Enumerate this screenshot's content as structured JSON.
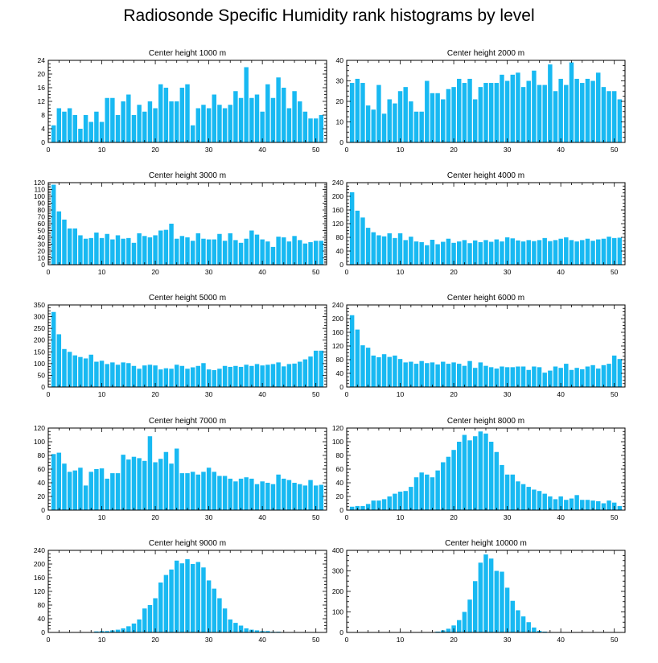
{
  "title": "Radiosonde Specific Humidity rank histograms by level",
  "colors": {
    "bar": "#18b9f2",
    "axis": "#000000",
    "background": "#ffffff"
  },
  "chart_data": [
    {
      "type": "bar",
      "title": "Center height 1000 m",
      "xlabel": "",
      "ylabel": "",
      "xlim": [
        0,
        52
      ],
      "ylim": [
        0,
        24
      ],
      "xticks": [
        0,
        10,
        20,
        30,
        40,
        50
      ],
      "yticks": [
        0,
        4,
        8,
        12,
        16,
        20,
        24
      ],
      "x": [
        1,
        2,
        3,
        4,
        5,
        6,
        7,
        8,
        9,
        10,
        11,
        12,
        13,
        14,
        15,
        16,
        17,
        18,
        19,
        20,
        21,
        22,
        23,
        24,
        25,
        26,
        27,
        28,
        29,
        30,
        31,
        32,
        33,
        34,
        35,
        36,
        37,
        38,
        39,
        40,
        41,
        42,
        43,
        44,
        45,
        46,
        47,
        48,
        49,
        50,
        51
      ],
      "values": [
        5,
        10,
        9,
        10,
        8,
        4,
        8,
        6,
        9,
        6,
        13,
        13,
        8,
        12,
        14,
        8,
        11,
        9,
        12,
        10,
        17,
        16,
        12,
        12,
        16,
        17,
        5,
        10,
        11,
        10,
        14,
        11,
        10,
        11,
        15,
        13,
        22,
        13,
        14,
        9,
        17,
        13,
        19,
        16,
        10,
        15,
        12,
        9,
        7,
        7,
        8
      ]
    },
    {
      "type": "bar",
      "title": "Center height 2000 m",
      "xlabel": "",
      "ylabel": "",
      "xlim": [
        0,
        52
      ],
      "ylim": [
        0,
        40
      ],
      "xticks": [
        0,
        10,
        20,
        30,
        40,
        50
      ],
      "yticks": [
        0,
        10,
        20,
        30,
        40
      ],
      "x": [
        1,
        2,
        3,
        4,
        5,
        6,
        7,
        8,
        9,
        10,
        11,
        12,
        13,
        14,
        15,
        16,
        17,
        18,
        19,
        20,
        21,
        22,
        23,
        24,
        25,
        26,
        27,
        28,
        29,
        30,
        31,
        32,
        33,
        34,
        35,
        36,
        37,
        38,
        39,
        40,
        41,
        42,
        43,
        44,
        45,
        46,
        47,
        48,
        49,
        50,
        51
      ],
      "values": [
        29,
        31,
        29,
        18,
        16,
        28,
        14,
        21,
        19,
        25,
        27,
        20,
        15,
        15,
        30,
        24,
        24,
        21,
        26,
        27,
        31,
        29,
        31,
        21,
        27,
        29,
        29,
        29,
        33,
        30,
        33,
        34,
        27,
        30,
        35,
        28,
        28,
        38,
        25,
        31,
        28,
        39,
        31,
        29,
        31,
        30,
        34,
        27,
        25,
        25,
        21
      ]
    },
    {
      "type": "bar",
      "title": "Center height 3000 m",
      "xlabel": "",
      "ylabel": "",
      "xlim": [
        0,
        52
      ],
      "ylim": [
        0,
        120
      ],
      "xticks": [
        0,
        10,
        20,
        30,
        40,
        50
      ],
      "yticks": [
        0,
        10,
        20,
        30,
        40,
        50,
        60,
        70,
        80,
        90,
        100,
        110,
        120
      ],
      "x": [
        1,
        2,
        3,
        4,
        5,
        6,
        7,
        8,
        9,
        10,
        11,
        12,
        13,
        14,
        15,
        16,
        17,
        18,
        19,
        20,
        21,
        22,
        23,
        24,
        25,
        26,
        27,
        28,
        29,
        30,
        31,
        32,
        33,
        34,
        35,
        36,
        37,
        38,
        39,
        40,
        41,
        42,
        43,
        44,
        45,
        46,
        47,
        48,
        49,
        50,
        51
      ],
      "values": [
        117,
        78,
        66,
        53,
        53,
        43,
        38,
        39,
        47,
        39,
        45,
        37,
        43,
        38,
        39,
        32,
        46,
        42,
        40,
        43,
        50,
        51,
        60,
        38,
        42,
        40,
        35,
        46,
        38,
        37,
        37,
        45,
        35,
        46,
        36,
        32,
        38,
        50,
        44,
        37,
        34,
        26,
        41,
        40,
        34,
        42,
        36,
        31,
        33,
        35,
        35
      ]
    },
    {
      "type": "bar",
      "title": "Center height 4000 m",
      "xlabel": "",
      "ylabel": "",
      "xlim": [
        0,
        52
      ],
      "ylim": [
        0,
        240
      ],
      "xticks": [
        0,
        10,
        20,
        30,
        40,
        50
      ],
      "yticks": [
        0,
        40,
        80,
        120,
        160,
        200,
        240
      ],
      "x": [
        1,
        2,
        3,
        4,
        5,
        6,
        7,
        8,
        9,
        10,
        11,
        12,
        13,
        14,
        15,
        16,
        17,
        18,
        19,
        20,
        21,
        22,
        23,
        24,
        25,
        26,
        27,
        28,
        29,
        30,
        31,
        32,
        33,
        34,
        35,
        36,
        37,
        38,
        39,
        40,
        41,
        42,
        43,
        44,
        45,
        46,
        47,
        48,
        49,
        50,
        51
      ],
      "values": [
        212,
        158,
        138,
        108,
        95,
        86,
        83,
        92,
        78,
        92,
        72,
        82,
        68,
        66,
        57,
        73,
        60,
        67,
        76,
        64,
        68,
        72,
        63,
        71,
        66,
        72,
        67,
        74,
        68,
        80,
        77,
        71,
        68,
        72,
        69,
        72,
        78,
        69,
        72,
        76,
        80,
        72,
        68,
        72,
        76,
        70,
        74,
        76,
        82,
        78,
        79
      ]
    },
    {
      "type": "bar",
      "title": "Center height 5000 m",
      "xlabel": "",
      "ylabel": "",
      "xlim": [
        0,
        52
      ],
      "ylim": [
        0,
        350
      ],
      "xticks": [
        0,
        10,
        20,
        30,
        40,
        50
      ],
      "yticks": [
        0,
        50,
        100,
        150,
        200,
        250,
        300,
        350
      ],
      "x": [
        1,
        2,
        3,
        4,
        5,
        6,
        7,
        8,
        9,
        10,
        11,
        12,
        13,
        14,
        15,
        16,
        17,
        18,
        19,
        20,
        21,
        22,
        23,
        24,
        25,
        26,
        27,
        28,
        29,
        30,
        31,
        32,
        33,
        34,
        35,
        36,
        37,
        38,
        39,
        40,
        41,
        42,
        43,
        44,
        45,
        46,
        47,
        48,
        49,
        50,
        51
      ],
      "values": [
        320,
        225,
        162,
        150,
        135,
        128,
        122,
        138,
        108,
        112,
        98,
        105,
        95,
        105,
        102,
        90,
        78,
        92,
        95,
        92,
        75,
        80,
        78,
        95,
        90,
        78,
        84,
        90,
        102,
        75,
        72,
        78,
        90,
        86,
        90,
        86,
        95,
        90,
        98,
        92,
        95,
        98,
        105,
        88,
        98,
        100,
        108,
        118,
        130,
        155,
        155
      ]
    },
    {
      "type": "bar",
      "title": "Center height 6000 m",
      "xlabel": "",
      "ylabel": "",
      "xlim": [
        0,
        52
      ],
      "ylim": [
        0,
        240
      ],
      "xticks": [
        0,
        10,
        20,
        30,
        40,
        50
      ],
      "yticks": [
        0,
        40,
        80,
        120,
        160,
        200,
        240
      ],
      "x": [
        1,
        2,
        3,
        4,
        5,
        6,
        7,
        8,
        9,
        10,
        11,
        12,
        13,
        14,
        15,
        16,
        17,
        18,
        19,
        20,
        21,
        22,
        23,
        24,
        25,
        26,
        27,
        28,
        29,
        30,
        31,
        32,
        33,
        34,
        35,
        36,
        37,
        38,
        39,
        40,
        41,
        42,
        43,
        44,
        45,
        46,
        47,
        48,
        49,
        50,
        51
      ],
      "values": [
        210,
        168,
        122,
        115,
        92,
        87,
        96,
        88,
        92,
        82,
        72,
        74,
        68,
        76,
        70,
        72,
        66,
        74,
        68,
        72,
        68,
        62,
        76,
        56,
        72,
        62,
        58,
        54,
        60,
        58,
        58,
        60,
        60,
        50,
        60,
        58,
        42,
        48,
        60,
        56,
        68,
        50,
        56,
        52,
        60,
        64,
        54,
        64,
        68,
        92,
        82
      ]
    },
    {
      "type": "bar",
      "title": "Center height 7000 m",
      "xlabel": "",
      "ylabel": "",
      "xlim": [
        0,
        52
      ],
      "ylim": [
        0,
        120
      ],
      "xticks": [
        0,
        10,
        20,
        30,
        40,
        50
      ],
      "yticks": [
        0,
        20,
        40,
        60,
        80,
        100,
        120
      ],
      "x": [
        1,
        2,
        3,
        4,
        5,
        6,
        7,
        8,
        9,
        10,
        11,
        12,
        13,
        14,
        15,
        16,
        17,
        18,
        19,
        20,
        21,
        22,
        23,
        24,
        25,
        26,
        27,
        28,
        29,
        30,
        31,
        32,
        33,
        34,
        35,
        36,
        37,
        38,
        39,
        40,
        41,
        42,
        43,
        44,
        45,
        46,
        47,
        48,
        49,
        50,
        51
      ],
      "values": [
        82,
        84,
        68,
        56,
        58,
        62,
        36,
        56,
        60,
        61,
        46,
        54,
        54,
        81,
        74,
        78,
        76,
        72,
        108,
        70,
        75,
        85,
        68,
        90,
        54,
        54,
        56,
        52,
        56,
        62,
        56,
        50,
        50,
        46,
        42,
        46,
        48,
        46,
        38,
        42,
        40,
        38,
        52,
        46,
        44,
        40,
        38,
        36,
        44,
        36,
        37
      ]
    },
    {
      "type": "bar",
      "title": "Center height 8000 m",
      "xlabel": "",
      "ylabel": "",
      "xlim": [
        0,
        52
      ],
      "ylim": [
        0,
        120
      ],
      "xticks": [
        0,
        10,
        20,
        30,
        40,
        50
      ],
      "yticks": [
        0,
        20,
        40,
        60,
        80,
        100,
        120
      ],
      "x": [
        1,
        2,
        3,
        4,
        5,
        6,
        7,
        8,
        9,
        10,
        11,
        12,
        13,
        14,
        15,
        16,
        17,
        18,
        19,
        20,
        21,
        22,
        23,
        24,
        25,
        26,
        27,
        28,
        29,
        30,
        31,
        32,
        33,
        34,
        35,
        36,
        37,
        38,
        39,
        40,
        41,
        42,
        43,
        44,
        45,
        46,
        47,
        48,
        49,
        50,
        51
      ],
      "values": [
        5,
        6,
        6,
        9,
        14,
        14,
        16,
        20,
        24,
        27,
        28,
        34,
        48,
        55,
        52,
        48,
        58,
        70,
        78,
        88,
        100,
        110,
        102,
        108,
        115,
        112,
        100,
        85,
        66,
        52,
        52,
        42,
        38,
        34,
        30,
        28,
        24,
        20,
        16,
        20,
        15,
        17,
        22,
        15,
        15,
        14,
        13,
        10,
        14,
        11,
        6
      ]
    },
    {
      "type": "bar",
      "title": "Center height 9000 m",
      "xlabel": "",
      "ylabel": "",
      "xlim": [
        0,
        52
      ],
      "ylim": [
        0,
        240
      ],
      "xticks": [
        0,
        10,
        20,
        30,
        40,
        50
      ],
      "yticks": [
        0,
        40,
        80,
        120,
        160,
        200,
        240
      ],
      "x": [
        1,
        2,
        3,
        4,
        5,
        6,
        7,
        8,
        9,
        10,
        11,
        12,
        13,
        14,
        15,
        16,
        17,
        18,
        19,
        20,
        21,
        22,
        23,
        24,
        25,
        26,
        27,
        28,
        29,
        30,
        31,
        32,
        33,
        34,
        35,
        36,
        37,
        38,
        39,
        40,
        41,
        42,
        43,
        44,
        45,
        46,
        47,
        48,
        49,
        50,
        51
      ],
      "values": [
        1,
        1,
        1,
        1,
        1,
        1,
        1,
        1,
        3,
        4,
        4,
        6,
        8,
        12,
        18,
        26,
        38,
        70,
        80,
        100,
        146,
        168,
        184,
        210,
        202,
        214,
        200,
        206,
        190,
        152,
        128,
        100,
        70,
        38,
        28,
        20,
        12,
        8,
        6,
        4,
        4,
        2,
        2,
        1,
        1,
        1,
        1,
        1,
        1,
        1,
        1
      ]
    },
    {
      "type": "bar",
      "title": "Center height 10000 m",
      "xlabel": "",
      "ylabel": "",
      "xlim": [
        0,
        52
      ],
      "ylim": [
        0,
        400
      ],
      "xticks": [
        0,
        10,
        20,
        30,
        40,
        50
      ],
      "yticks": [
        0,
        100,
        200,
        300,
        400
      ],
      "x": [
        1,
        2,
        3,
        4,
        5,
        6,
        7,
        8,
        9,
        10,
        11,
        12,
        13,
        14,
        15,
        16,
        17,
        18,
        19,
        20,
        21,
        22,
        23,
        24,
        25,
        26,
        27,
        28,
        29,
        30,
        31,
        32,
        33,
        34,
        35,
        36,
        37,
        38,
        39,
        40,
        41,
        42,
        43,
        44,
        45,
        46,
        47,
        48,
        49,
        50,
        51
      ],
      "values": [
        1,
        1,
        1,
        1,
        1,
        1,
        1,
        1,
        1,
        1,
        1,
        1,
        1,
        1,
        1,
        1,
        4,
        10,
        18,
        34,
        60,
        100,
        160,
        250,
        340,
        380,
        360,
        300,
        296,
        218,
        154,
        108,
        78,
        50,
        24,
        8,
        4,
        2,
        1,
        1,
        1,
        1,
        1,
        1,
        1,
        1,
        1,
        1,
        1,
        1,
        1
      ]
    }
  ]
}
